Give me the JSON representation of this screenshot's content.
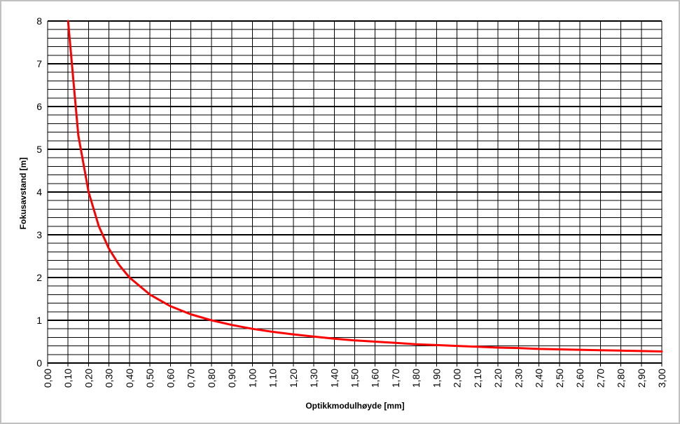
{
  "chart_data": {
    "type": "line",
    "xlabel": "Optikkmodulhøyde [mm]",
    "ylabel": "Fokusavstand [m]",
    "xlim": [
      0,
      3
    ],
    "ylim": [
      0,
      8
    ],
    "x_ticks": [
      "0,00",
      "0,10",
      "0,20",
      "0,30",
      "0,40",
      "0,50",
      "0,60",
      "0,70",
      "0,80",
      "0,90",
      "1,00",
      "1,10",
      "1,20",
      "1,30",
      "1,40",
      "1,50",
      "1,60",
      "1,70",
      "1,80",
      "1,90",
      "2,00",
      "2,10",
      "2,20",
      "2,30",
      "2,40",
      "2,50",
      "2,60",
      "2,70",
      "2,80",
      "2,90",
      "3,00"
    ],
    "y_ticks": [
      "0",
      "1",
      "2",
      "3",
      "4",
      "5",
      "6",
      "7",
      "8"
    ],
    "grid": true,
    "legend": "none",
    "series": [
      {
        "color": "#ff0000",
        "x": [
          0.1,
          0.15,
          0.2,
          0.25,
          0.3,
          0.35,
          0.4,
          0.5,
          0.6,
          0.7,
          0.8,
          0.9,
          1.0,
          1.1,
          1.2,
          1.3,
          1.4,
          1.5,
          1.6,
          1.7,
          1.8,
          1.9,
          2.0,
          2.1,
          2.2,
          2.3,
          2.4,
          2.5,
          2.6,
          2.7,
          2.8,
          2.9,
          3.0
        ],
        "y": [
          8.0,
          5.33,
          4.0,
          3.2,
          2.67,
          2.29,
          2.0,
          1.6,
          1.33,
          1.14,
          1.0,
          0.89,
          0.8,
          0.73,
          0.67,
          0.62,
          0.57,
          0.53,
          0.5,
          0.47,
          0.44,
          0.42,
          0.4,
          0.38,
          0.36,
          0.35,
          0.33,
          0.32,
          0.31,
          0.3,
          0.29,
          0.28,
          0.27
        ]
      }
    ]
  }
}
